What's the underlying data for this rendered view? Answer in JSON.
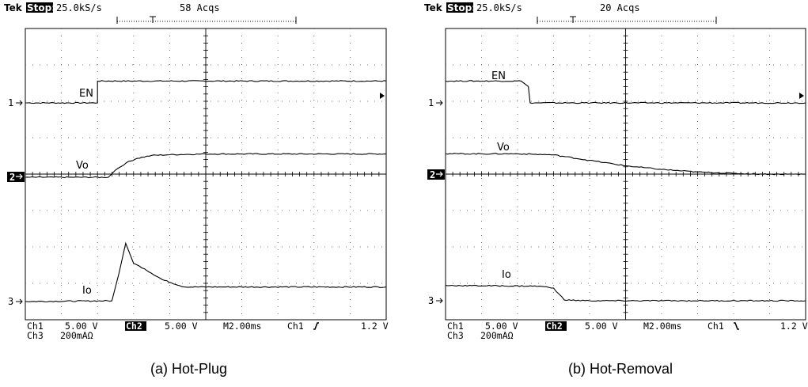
{
  "chart_data": [
    {
      "type": "line",
      "caption": "(a) Hot-Plug",
      "header": {
        "brand": "Tek",
        "state": "Stop:",
        "rate": "25.0kS/s",
        "acqs": "58 Acqs"
      },
      "footer": {
        "ch1": "Ch1",
        "ch1_scale": "5.00 V",
        "ch2": "Ch2",
        "ch2_scale": "5.00 V",
        "timebase": "M2.00ms",
        "trig_src": "Ch1",
        "trig_slope": "rising",
        "trig_level": "1.2 V",
        "ch3": "Ch3",
        "ch3_scale": "200mAΩ"
      },
      "grid": {
        "x_divisions": 10,
        "y_divisions": 8,
        "grid": true
      },
      "ground_markers": [
        "1",
        "2",
        "3"
      ],
      "trigger_arrow": "trigger-level-arrow-left",
      "x_unit": "divisions",
      "y_unit": "divisions from ground marker",
      "series": [
        {
          "name": "EN",
          "channel": "1",
          "color": "#000000",
          "x": [
            0,
            2.0,
            2.0,
            10
          ],
          "y": [
            0,
            0,
            0.6,
            0.6
          ]
        },
        {
          "name": "Vo",
          "channel": "2",
          "color": "#000000",
          "x": [
            0,
            2.3,
            2.5,
            2.8,
            3.1,
            3.5,
            4.0,
            5.0,
            6.0,
            10
          ],
          "y": [
            0,
            0,
            0.2,
            0.4,
            0.52,
            0.6,
            0.62,
            0.64,
            0.64,
            0.64
          ]
        },
        {
          "name": "Io",
          "channel": "3",
          "color": "#000000",
          "x": [
            0,
            2.4,
            2.6,
            2.78,
            3.0,
            3.3,
            3.8,
            4.4,
            5.5,
            10
          ],
          "y": [
            0,
            0.02,
            0.8,
            1.6,
            1.05,
            0.9,
            0.6,
            0.4,
            0.4,
            0.4
          ]
        }
      ]
    },
    {
      "type": "line",
      "caption": "(b) Hot-Removal",
      "header": {
        "brand": "Tek",
        "state": "Stop:",
        "rate": "25.0kS/s",
        "acqs": "20 Acqs"
      },
      "footer": {
        "ch1": "Ch1",
        "ch1_scale": "5.00 V",
        "ch2": "Ch2",
        "ch2_scale": "5.00 V",
        "timebase": "M2.00ms",
        "trig_src": "Ch1",
        "trig_slope": "falling",
        "trig_level": "1.2 V",
        "ch3": "Ch3",
        "ch3_scale": "200mAΩ"
      },
      "grid": {
        "x_divisions": 10,
        "y_divisions": 8,
        "grid": true
      },
      "ground_markers": [
        "1",
        "2",
        "3"
      ],
      "trigger_arrow": "trigger-level-arrow-left",
      "x_unit": "divisions",
      "y_unit": "divisions from ground marker",
      "series": [
        {
          "name": "EN",
          "channel": "1",
          "color": "#000000",
          "x": [
            0,
            2.1,
            2.3,
            2.35,
            10
          ],
          "y": [
            0.6,
            0.6,
            0.45,
            0,
            0
          ]
        },
        {
          "name": "Vo",
          "channel": "2",
          "color": "#000000",
          "x": [
            0,
            2.0,
            3.0,
            4.0,
            5.0,
            6.0,
            7.0,
            8.0,
            9.0,
            10
          ],
          "y": [
            0.58,
            0.58,
            0.55,
            0.4,
            0.25,
            0.15,
            0.08,
            0.04,
            0.02,
            0.02
          ]
        },
        {
          "name": "Io",
          "channel": "3",
          "color": "#000000",
          "x": [
            0,
            2.6,
            3.0,
            3.3,
            4.0,
            10
          ],
          "y": [
            0.42,
            0.4,
            0.35,
            0.02,
            0,
            0
          ]
        }
      ]
    }
  ]
}
